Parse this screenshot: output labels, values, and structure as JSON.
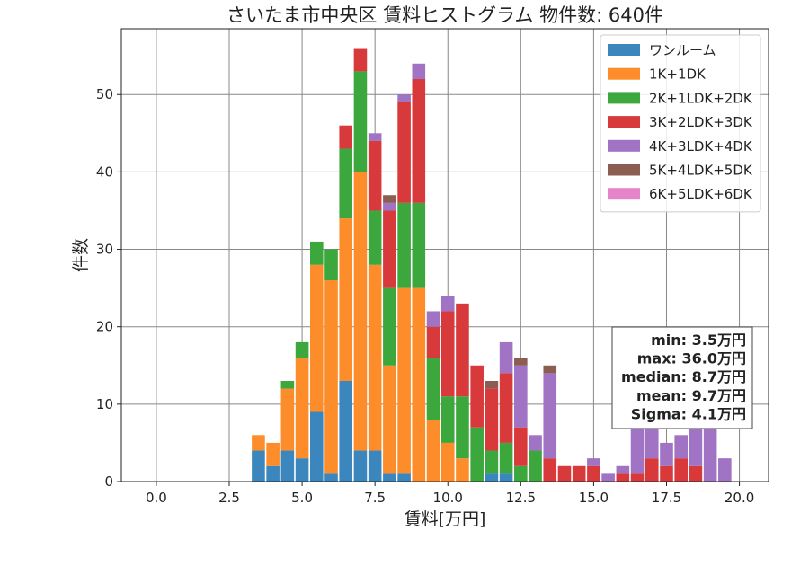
{
  "chart_data": {
    "type": "bar",
    "stacked": true,
    "title": "さいたま市中央区 賃料ヒストグラム  物件数: 640件",
    "xlabel": "賃料[万円]",
    "ylabel": "件数",
    "xlim": [
      -1.2,
      21.0
    ],
    "ylim": [
      0,
      58.5
    ],
    "x_ticks": [
      0.0,
      2.5,
      5.0,
      7.5,
      10.0,
      12.5,
      15.0,
      17.5,
      20.0
    ],
    "x_tick_labels": [
      "0.0",
      "2.5",
      "5.0",
      "7.5",
      "10.0",
      "12.5",
      "15.0",
      "17.5",
      "20.0"
    ],
    "y_ticks": [
      0,
      10,
      20,
      30,
      40,
      50
    ],
    "y_tick_labels": [
      "0",
      "10",
      "20",
      "30",
      "40",
      "50"
    ],
    "grid": true,
    "legend_position": "top-right",
    "bin_width": 0.5,
    "x": [
      3.5,
      4.0,
      4.5,
      5.0,
      5.5,
      6.0,
      6.5,
      7.0,
      7.5,
      8.0,
      8.5,
      9.0,
      9.5,
      10.0,
      10.5,
      11.0,
      11.5,
      12.0,
      12.5,
      13.0,
      13.5,
      14.0,
      14.5,
      15.0,
      15.5,
      16.0,
      16.5,
      17.0,
      17.5,
      18.0,
      18.5,
      19.0,
      19.5
    ],
    "series": [
      {
        "name": "ワンルーム",
        "color": "#3a86bd",
        "values": [
          4,
          2,
          4,
          3,
          9,
          1,
          13,
          4,
          4,
          1,
          1,
          0,
          0,
          0,
          0,
          0,
          1,
          1,
          0,
          0,
          0,
          0,
          0,
          0,
          0,
          0,
          0,
          0,
          0,
          0,
          0,
          0,
          0
        ]
      },
      {
        "name": "1K+1DK",
        "color": "#fd8c2b",
        "values": [
          2,
          3,
          8,
          13,
          19,
          25,
          21,
          36,
          24,
          14,
          24,
          25,
          8,
          5,
          3,
          0,
          0,
          0,
          0,
          0,
          0,
          0,
          0,
          0,
          0,
          0,
          0,
          0,
          0,
          0,
          0,
          0,
          0
        ]
      },
      {
        "name": "2K+1LDK+2DK",
        "color": "#3ca73c",
        "values": [
          0,
          0,
          1,
          2,
          3,
          4,
          9,
          13,
          7,
          10,
          11,
          11,
          8,
          6,
          8,
          7,
          3,
          4,
          2,
          4,
          0,
          0,
          0,
          0,
          0,
          0,
          0,
          0,
          0,
          0,
          0,
          0,
          0
        ]
      },
      {
        "name": "3K+2LDK+3DK",
        "color": "#d83a3b",
        "values": [
          0,
          0,
          0,
          0,
          0,
          0,
          3,
          3,
          9,
          10,
          13,
          16,
          4,
          11,
          12,
          8,
          8,
          9,
          5,
          0,
          3,
          2,
          2,
          2,
          0,
          1,
          1,
          3,
          2,
          3,
          2,
          0,
          0
        ]
      },
      {
        "name": "4K+3LDK+4DK",
        "color": "#a073c4",
        "values": [
          0,
          0,
          0,
          0,
          0,
          0,
          0,
          0,
          1,
          1,
          1,
          2,
          2,
          2,
          0,
          0,
          0,
          4,
          8,
          2,
          11,
          0,
          0,
          1,
          1,
          1,
          8,
          4,
          3,
          3,
          5,
          7,
          3
        ]
      },
      {
        "name": "5K+4LDK+5DK",
        "color": "#8c5d52",
        "values": [
          0,
          0,
          0,
          0,
          0,
          0,
          0,
          0,
          0,
          1,
          0,
          0,
          0,
          0,
          0,
          0,
          1,
          0,
          1,
          0,
          1,
          0,
          0,
          0,
          0,
          0,
          0,
          1,
          0,
          0,
          0,
          0,
          0
        ]
      },
      {
        "name": "6K+5LDK+6DK",
        "color": "#e584c8",
        "values": [
          0,
          0,
          0,
          0,
          0,
          0,
          0,
          0,
          0,
          0,
          0,
          0,
          0,
          0,
          0,
          0,
          0,
          0,
          0,
          0,
          0,
          0,
          0,
          0,
          0,
          0,
          0,
          0,
          0,
          0,
          0,
          0,
          0
        ]
      }
    ],
    "stats": [
      "min: 3.5万円",
      "max: 36.0万円",
      "median: 8.7万円",
      "mean: 9.7万円",
      "Sigma: 4.1万円"
    ]
  }
}
